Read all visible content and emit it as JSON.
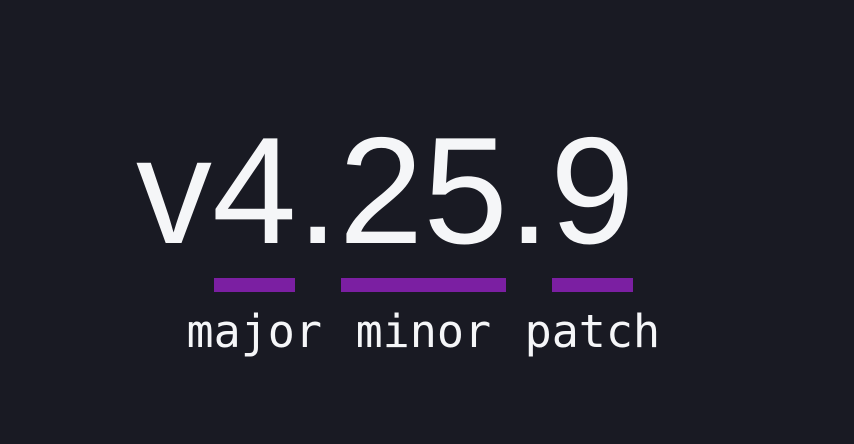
{
  "theme": {
    "background": "#191a23",
    "bar_color": "#7b1fa2",
    "text_color": "#f5f6f8"
  },
  "version": {
    "full": "v4.25.9",
    "prefix": "v",
    "major": "4",
    "dot": ".",
    "minor": "25",
    "patch": "9"
  },
  "captions": {
    "major": "major",
    "minor": "minor",
    "patch": "patch"
  }
}
